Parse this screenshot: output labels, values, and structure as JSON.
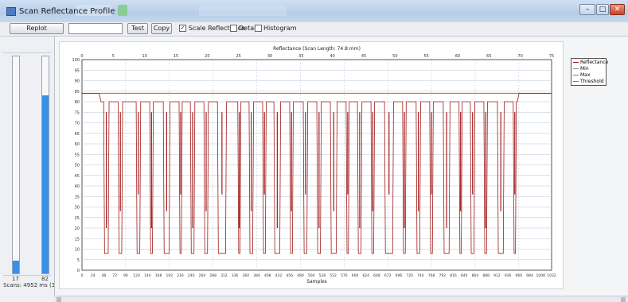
{
  "window": {
    "title": "Scan Reflectance Profile",
    "buttons": {
      "minimize": "–",
      "maximize": "□",
      "close": "✕"
    }
  },
  "toolbar": {
    "dropdown_label": "Replot",
    "input_value": "",
    "test_label": "Test",
    "copy_label": "Copy",
    "scale_reflectance_label": "Scale Reflectance",
    "scale_reflectance_checked": true,
    "details_label": "Details",
    "details_checked": false,
    "histogram_label": "Histogram",
    "histogram_checked": false
  },
  "left_panel": {
    "meter1_value_label": "17",
    "meter1_level": 0.06,
    "meter2_value_label": "82",
    "meter2_level": 0.82,
    "status_text": "Scans: 4952 ms (3)"
  },
  "colors": {
    "reflectance": "#a31b1b",
    "threshold": "#d85a2a",
    "grid": "#b8c7d8",
    "meter_fill": "#3a8fe6"
  },
  "chart_data": {
    "type": "line",
    "title": "Reflectance (Scan Length: 74.8 mm)",
    "xlabel": "Samples",
    "ylabel": "",
    "xlim": [
      0,
      1040
    ],
    "ylim": [
      0,
      100
    ],
    "grid": true,
    "legend_position": "right",
    "legend": [
      "Reflectance",
      "Min",
      "Max",
      "Threshold"
    ],
    "y_ticks": [
      "0",
      "5",
      "10",
      "15",
      "20",
      "25",
      "30",
      "35",
      "40",
      "45",
      "50",
      "55",
      "60",
      "65",
      "70",
      "75",
      "80",
      "85",
      "90",
      "95",
      "100"
    ],
    "x_ticks": [
      "0",
      "24",
      "48",
      "72",
      "96",
      "120",
      "144",
      "168",
      "192",
      "216",
      "240",
      "264",
      "288",
      "312",
      "336",
      "360",
      "384",
      "408",
      "432",
      "456",
      "480",
      "504",
      "528",
      "552",
      "576",
      "600",
      "624",
      "648",
      "672",
      "696",
      "720",
      "744",
      "768",
      "792",
      "816",
      "840",
      "864",
      "888",
      "912",
      "936",
      "960",
      "984",
      "1008",
      "1032"
    ],
    "top_ticks": [
      "0",
      "5",
      "10",
      "15",
      "20",
      "25",
      "30",
      "35",
      "40",
      "45",
      "50",
      "55",
      "60",
      "65",
      "70",
      "75"
    ],
    "threshold": 84,
    "series": [
      {
        "name": "Reflectance",
        "quiet_zone_level": 84,
        "high_level": 80,
        "low_level": 8,
        "bars": [
          [
            48,
            60
          ],
          [
            80,
            90
          ],
          [
            120,
            130
          ],
          [
            150,
            158
          ],
          [
            180,
            195
          ],
          [
            215,
            222
          ],
          [
            240,
            250
          ],
          [
            270,
            280
          ],
          [
            300,
            320
          ],
          [
            345,
            352
          ],
          [
            370,
            380
          ],
          [
            400,
            408
          ],
          [
            425,
            440
          ],
          [
            460,
            468
          ],
          [
            490,
            500
          ],
          [
            520,
            530
          ],
          [
            550,
            565
          ],
          [
            585,
            592
          ],
          [
            610,
            620
          ],
          [
            640,
            648
          ],
          [
            670,
            690
          ],
          [
            710,
            718
          ],
          [
            740,
            750
          ],
          [
            770,
            778
          ],
          [
            800,
            815
          ],
          [
            835,
            842
          ],
          [
            860,
            870
          ],
          [
            890,
            898
          ],
          [
            920,
            935
          ],
          [
            955,
            962
          ]
        ],
        "quiet_zone_left_end": 38,
        "quiet_zone_right_start": 968
      }
    ]
  }
}
